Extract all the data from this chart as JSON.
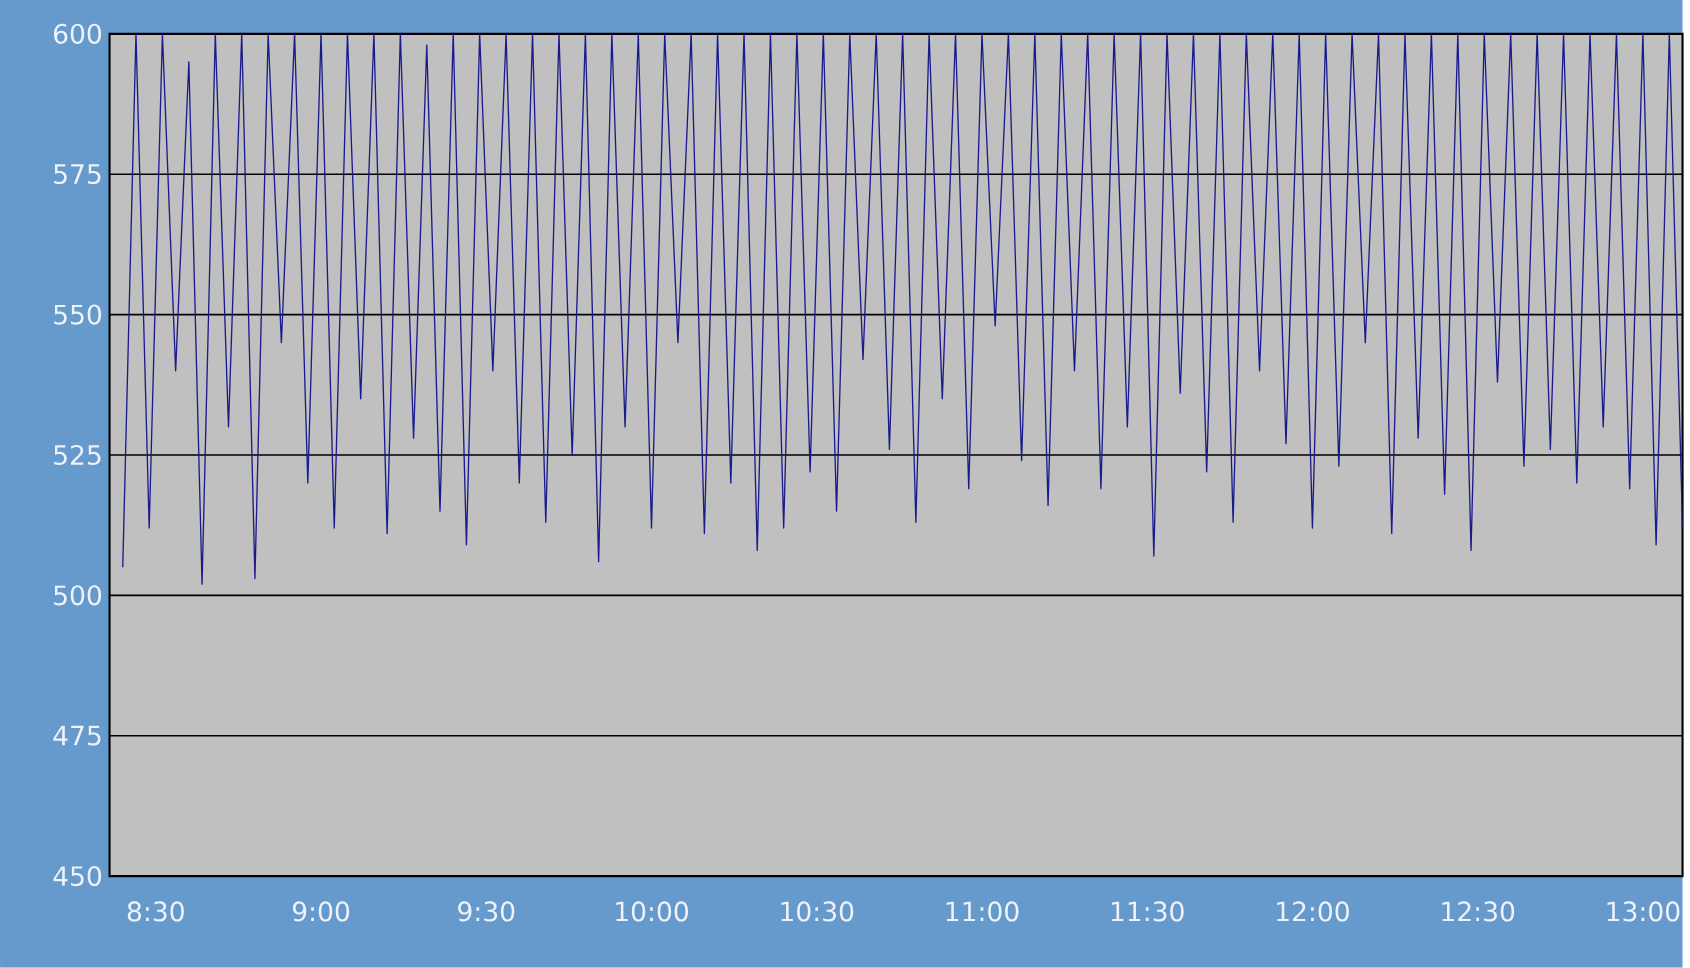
{
  "chart_data": {
    "type": "line",
    "xlim": [
      8.36,
      13.12
    ],
    "ylim": [
      450,
      600
    ],
    "xticks": [
      {
        "value": 8.5,
        "label": "8:30"
      },
      {
        "value": 9,
        "label": "9:00"
      },
      {
        "value": 9.5,
        "label": "9:30"
      },
      {
        "value": 10,
        "label": "10:00"
      },
      {
        "value": 10.5,
        "label": "10:30"
      },
      {
        "value": 11,
        "label": "11:00"
      },
      {
        "value": 11.5,
        "label": "11:30"
      },
      {
        "value": 12,
        "label": "12:00"
      },
      {
        "value": 12.5,
        "label": "12:30"
      },
      {
        "value": 13,
        "label": "13:00"
      }
    ],
    "yticks": [
      450,
      475,
      500,
      525,
      550,
      575,
      600
    ],
    "grid": "y",
    "marker": "none",
    "line_style": "solid",
    "x": [
      8.4,
      8.44,
      8.48,
      8.52,
      8.56,
      8.6,
      8.64,
      8.68,
      8.72,
      8.76,
      8.8,
      8.84,
      8.88,
      8.92,
      8.96,
      9.0,
      9.04,
      9.08,
      9.12,
      9.16,
      9.2,
      9.24,
      9.28,
      9.32,
      9.36,
      9.4,
      9.44,
      9.48,
      9.52,
      9.56,
      9.6,
      9.64,
      9.68,
      9.72,
      9.76,
      9.8,
      9.84,
      9.88,
      9.92,
      9.96,
      10.0,
      10.04,
      10.08,
      10.12,
      10.16,
      10.2,
      10.24,
      10.28,
      10.32,
      10.36,
      10.4,
      10.44,
      10.48,
      10.52,
      10.56,
      10.6,
      10.64,
      10.68,
      10.72,
      10.76,
      10.8,
      10.84,
      10.88,
      10.92,
      10.96,
      11.0,
      11.04,
      11.08,
      11.12,
      11.16,
      11.2,
      11.24,
      11.28,
      11.32,
      11.36,
      11.4,
      11.44,
      11.48,
      11.52,
      11.56,
      11.6,
      11.64,
      11.68,
      11.72,
      11.76,
      11.8,
      11.84,
      11.88,
      11.92,
      11.96,
      12.0,
      12.04,
      12.08,
      12.12,
      12.16,
      12.2,
      12.24,
      12.28,
      12.32,
      12.36,
      12.4,
      12.44,
      12.48,
      12.52,
      12.56,
      12.6,
      12.64,
      12.68,
      12.72,
      12.76,
      12.8,
      12.84,
      12.88,
      12.92,
      12.96,
      13.0,
      13.04,
      13.08,
      13.12
    ],
    "series": [
      {
        "color": "#1a1a8c",
        "values": [
          505,
          600,
          512,
          600,
          540,
          595,
          502,
          600,
          530,
          600,
          503,
          600,
          545,
          600,
          520,
          600,
          512,
          600,
          535,
          600,
          511,
          600,
          528,
          598,
          515,
          600,
          509,
          600,
          540,
          600,
          520,
          600,
          513,
          600,
          525,
          600,
          506,
          600,
          530,
          600,
          512,
          600,
          545,
          600,
          511,
          600,
          520,
          600,
          508,
          600,
          512,
          600,
          522,
          600,
          515,
          600,
          542,
          600,
          526,
          600,
          513,
          600,
          535,
          600,
          519,
          600,
          548,
          600,
          524,
          600,
          516,
          600,
          540,
          600,
          519,
          600,
          530,
          600,
          507,
          600,
          536,
          600,
          522,
          600,
          513,
          600,
          540,
          600,
          527,
          600,
          512,
          600,
          523,
          600,
          545,
          600,
          511,
          600,
          528,
          600,
          518,
          600,
          508,
          600,
          538,
          600,
          523,
          600,
          526,
          600,
          520,
          600,
          530,
          600,
          519,
          600,
          509,
          600,
          512
        ]
      }
    ]
  }
}
